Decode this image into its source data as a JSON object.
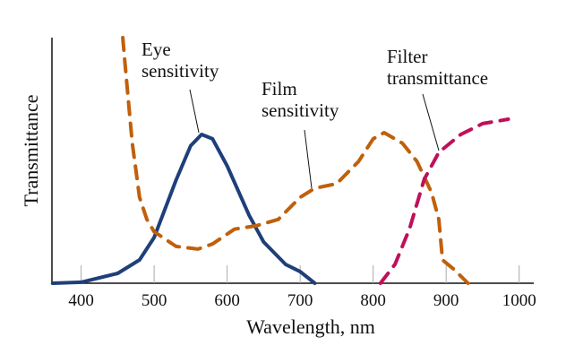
{
  "chart_data": {
    "type": "line",
    "x_label": "Wavelength, nm",
    "y_label": "Transmittance",
    "xlim": [
      360,
      1020
    ],
    "ylim": [
      0,
      100
    ],
    "xticks": [
      400,
      500,
      600,
      700,
      800,
      900,
      1000
    ],
    "series": [
      {
        "name": "Eye sensitivity",
        "color": "#1f3f7a",
        "dash": false,
        "x": [
          361,
          400,
          450,
          480,
          500,
          530,
          550,
          565,
          580,
          600,
          630,
          650,
          680,
          700,
          720
        ],
        "values": [
          0,
          0.4,
          4,
          9.5,
          18.6,
          42,
          56,
          60.6,
          58.8,
          47.8,
          27.7,
          16.8,
          7.7,
          4.7,
          0
        ]
      },
      {
        "name": "Film sensitivity",
        "color": "#c0600a",
        "dash": true,
        "x": [
          457,
          460,
          470,
          480,
          490,
          500,
          530,
          560,
          580,
          610,
          640,
          670,
          700,
          720,
          750,
          780,
          800,
          815,
          840,
          860,
          880,
          890,
          895,
          910,
          930
        ],
        "values": [
          100,
          89.8,
          57,
          35,
          26,
          21,
          15,
          13.9,
          16,
          22,
          23.4,
          26,
          35,
          38.7,
          40.5,
          49.6,
          58.8,
          61.3,
          57,
          49.6,
          36.9,
          26,
          9.5,
          5.8,
          0
        ]
      },
      {
        "name": "Filter transmittance",
        "color": "#c0105a",
        "dash": true,
        "x": [
          810,
          830,
          850,
          870,
          890,
          920,
          950,
          985
        ],
        "values": [
          0,
          7.7,
          22.3,
          42.3,
          53.3,
          60.6,
          65,
          66.8
        ]
      }
    ],
    "annotations": [
      {
        "lines": [
          "Eye",
          "sensitivity"
        ]
      },
      {
        "lines": [
          "Film",
          "sensitivity"
        ]
      },
      {
        "lines": [
          "Filter",
          "transmittance"
        ]
      }
    ]
  }
}
